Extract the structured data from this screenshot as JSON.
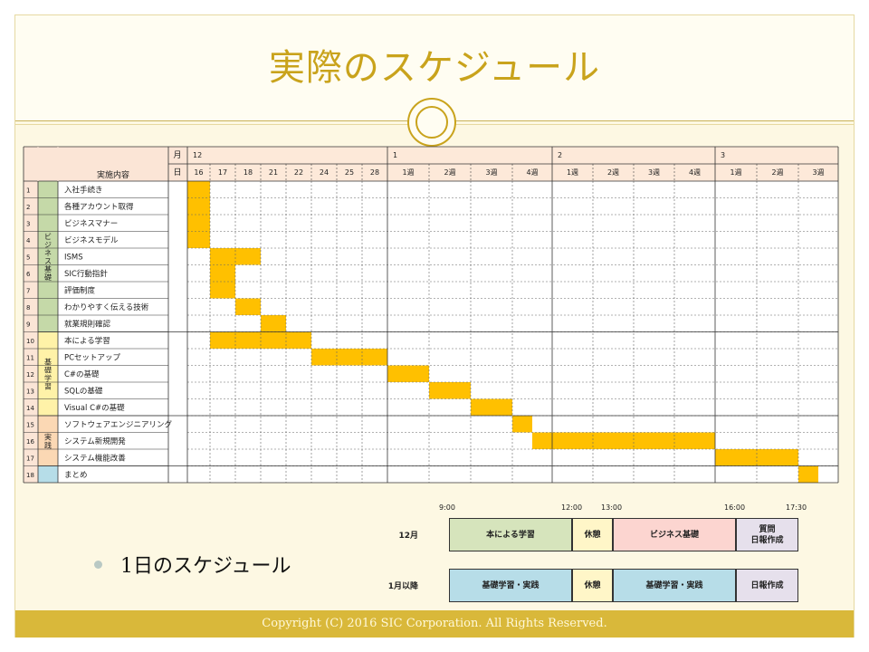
{
  "title": "実際のスケジュール",
  "footer": "Copyright (C) 2016 SIC Corporation. All Rights Reserved.",
  "bullet": "1日のスケジュール",
  "colors": {
    "gold_bar": "#ffc000",
    "category_green": "#c5d9a8",
    "category_yellow": "#fff2a8",
    "category_orange": "#fbd8b4",
    "category_blue": "#b6dde8",
    "theme_gold": "#c9a31c"
  },
  "gantt": {
    "header_content": "実施内容",
    "header_month": "月",
    "header_day": "日",
    "months": [
      {
        "label": "12",
        "span": 8
      },
      {
        "label": "1",
        "span": 4
      },
      {
        "label": "2",
        "span": 4
      },
      {
        "label": "3",
        "span": 3
      }
    ],
    "columns": [
      "16",
      "17",
      "18",
      "21",
      "22",
      "24",
      "25",
      "28",
      "1週",
      "2週",
      "3週",
      "4週",
      "1週",
      "2週",
      "3週",
      "4週",
      "1週",
      "2週",
      "3週"
    ],
    "groups": [
      {
        "label": "ビジネス基礎",
        "rows": [
          1,
          9
        ],
        "color": "#c5d9a8"
      },
      {
        "label": "基礎学習",
        "rows": [
          10,
          14
        ],
        "color": "#fff2a8"
      },
      {
        "label": "実践",
        "rows": [
          15,
          17
        ],
        "color": "#fbd8b4"
      },
      {
        "label": "",
        "rows": [
          18,
          18
        ],
        "color": "#b6dde8"
      }
    ],
    "tasks": [
      {
        "no": "1",
        "name": "入社手続き",
        "bar": [
          0,
          1
        ]
      },
      {
        "no": "2",
        "name": "各種アカウント取得",
        "bar": [
          0,
          1
        ]
      },
      {
        "no": "3",
        "name": "ビジネスマナー",
        "bar": [
          0,
          1
        ]
      },
      {
        "no": "4",
        "name": "ビジネスモデル",
        "bar": [
          0,
          1
        ]
      },
      {
        "no": "5",
        "name": "ISMS",
        "bar": [
          1,
          3
        ]
      },
      {
        "no": "6",
        "name": "SIC行動指針",
        "bar": [
          1,
          2
        ]
      },
      {
        "no": "7",
        "name": "評価制度",
        "bar": [
          1,
          2
        ]
      },
      {
        "no": "8",
        "name": "わかりやすく伝える技術",
        "bar": [
          2,
          3
        ]
      },
      {
        "no": "9",
        "name": "就業規則確認",
        "bar": [
          3,
          4
        ]
      },
      {
        "no": "10",
        "name": "本による学習",
        "bar": [
          1,
          5
        ]
      },
      {
        "no": "11",
        "name": "PCセットアップ",
        "bar": [
          5,
          8
        ]
      },
      {
        "no": "12",
        "name": "C#の基礎",
        "bar": [
          8,
          9
        ]
      },
      {
        "no": "13",
        "name": "SQLの基礎",
        "bar": [
          9,
          10
        ]
      },
      {
        "no": "14",
        "name": "Visual C#の基礎",
        "bar": [
          10,
          11
        ]
      },
      {
        "no": "15",
        "name": "ソフトウェアエンジニアリング",
        "bar": [
          11,
          11.5
        ]
      },
      {
        "no": "16",
        "name": "システム新規開発",
        "bar": [
          11.5,
          16
        ]
      },
      {
        "no": "17",
        "name": "システム機能改善",
        "bar": [
          16,
          18
        ]
      },
      {
        "no": "18",
        "name": "まとめ",
        "bar": [
          18,
          18.5
        ]
      }
    ]
  },
  "daily": {
    "times": [
      "9:00",
      "12:00",
      "13:00",
      "16:00",
      "17:30"
    ],
    "rows": [
      {
        "label": "12月",
        "cells": [
          {
            "text": "本による学習",
            "color": "#d6e4bc"
          },
          {
            "text": "休憩",
            "color": "#fff6c8"
          },
          {
            "text": "ビジネス基礎",
            "color": "#fcd5d0"
          },
          {
            "text": "質問\n日報作成",
            "color": "#e6e0ec"
          }
        ]
      },
      {
        "label": "1月以降",
        "cells": [
          {
            "text": "基礎学習・実践",
            "color": "#b7dde8"
          },
          {
            "text": "休憩",
            "color": "#fff6c8"
          },
          {
            "text": "基礎学習・実践",
            "color": "#b7dde8"
          },
          {
            "text": "日報作成",
            "color": "#e6e0ec"
          }
        ]
      }
    ]
  }
}
